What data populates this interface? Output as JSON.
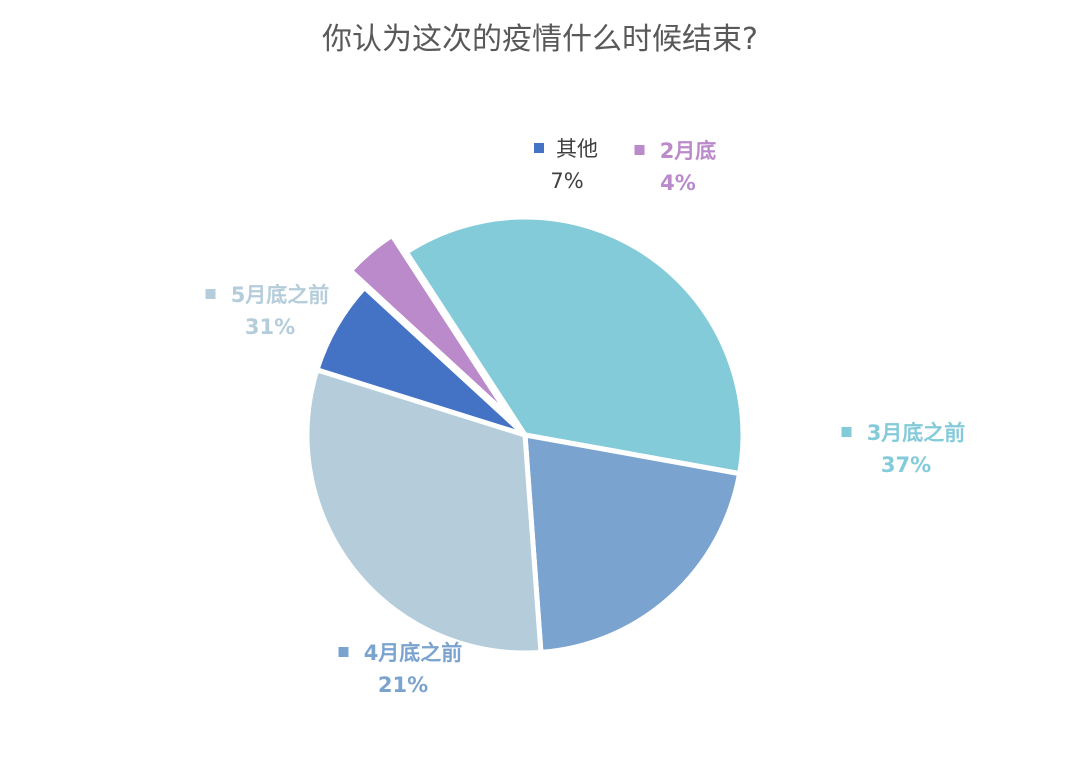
{
  "chart_data": {
    "type": "pie",
    "title": "你认为这次的疫情什么时候结束?",
    "slices": [
      {
        "label": "3月底之前",
        "value": 37,
        "value_label": "37%",
        "color": "#84CBD9"
      },
      {
        "label": "4月底之前",
        "value": 21,
        "value_label": "21%",
        "color": "#7BA3CF"
      },
      {
        "label": "5月底之前",
        "value": 31,
        "value_label": "31%",
        "color": "#B5CDDB"
      },
      {
        "label": "其他",
        "value": 7,
        "value_label": "7%",
        "color": "#4472C4"
      },
      {
        "label": "2月底",
        "value": 4,
        "value_label": "4%",
        "color": "#BA8ACB",
        "exploded": true
      }
    ],
    "legend": "none",
    "label_colors": {
      "3月底之前": "#84CBD9",
      "4月底之前": "#7BA3CF",
      "5月底之前": "#B5CDDB",
      "其他": "#404040",
      "2月底": "#BA8ACB"
    }
  }
}
